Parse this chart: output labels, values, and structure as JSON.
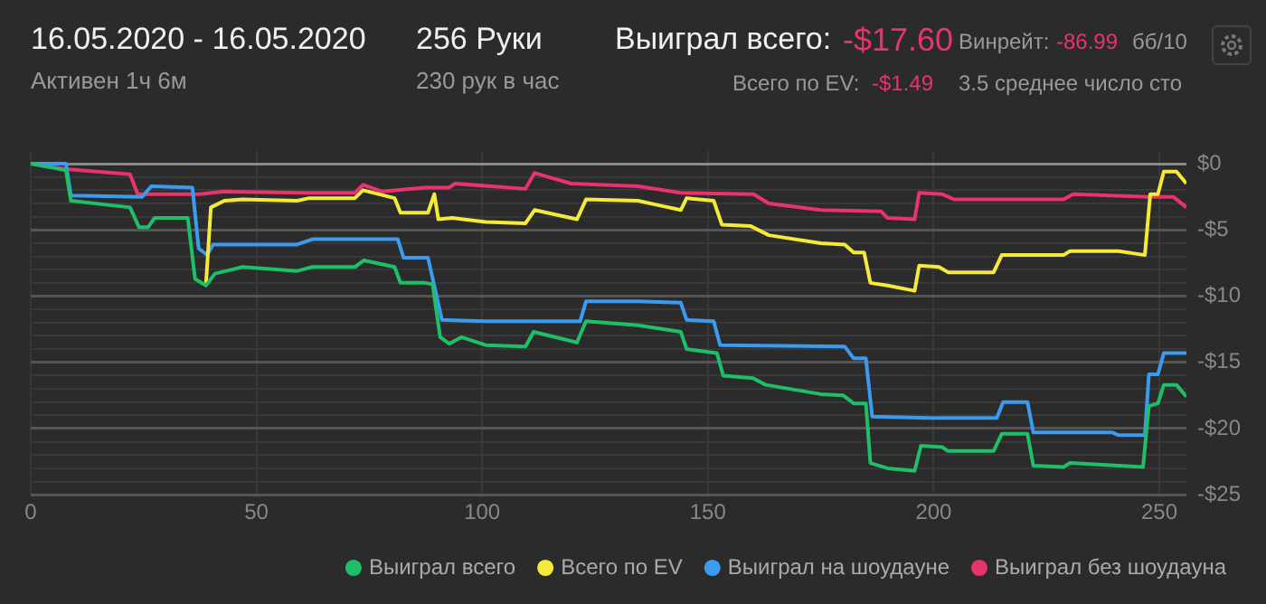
{
  "chart_data": {
    "type": "line",
    "title": "16.05.2020 - 16.05.2020",
    "subtitle": "Активен 1ч 6м",
    "annotations": [
      "256 Руки",
      "230 рук в час",
      "Выиграл всего:",
      "-$17.60",
      "Всего по EV:",
      "-$1.49",
      "Винрейт:",
      "-86.99",
      "бб/10",
      "3.5 среднее число сто"
    ],
    "xlim": [
      0,
      256
    ],
    "xticks": [
      0,
      50,
      100,
      150,
      200,
      250
    ],
    "ylim": [
      -25,
      1
    ],
    "yticks": [
      {
        "value": 0,
        "label": "$0"
      },
      {
        "value": -1,
        "label": null
      },
      {
        "value": -2,
        "label": null
      },
      {
        "value": -3,
        "label": null
      },
      {
        "value": -4,
        "label": null
      },
      {
        "value": -5,
        "label": "-$5"
      },
      {
        "value": -6,
        "label": null
      },
      {
        "value": -7,
        "label": null
      },
      {
        "value": -8,
        "label": null
      },
      {
        "value": -9,
        "label": null
      },
      {
        "value": -10,
        "label": "-$10"
      },
      {
        "value": -11,
        "label": null
      },
      {
        "value": -12,
        "label": null
      },
      {
        "value": -13,
        "label": null
      },
      {
        "value": -14,
        "label": null
      },
      {
        "value": -15,
        "label": "-$15"
      },
      {
        "value": -16,
        "label": null
      },
      {
        "value": -17,
        "label": null
      },
      {
        "value": -18,
        "label": null
      },
      {
        "value": -19,
        "label": null
      },
      {
        "value": -20,
        "label": "-$20"
      },
      {
        "value": -21,
        "label": null
      },
      {
        "value": -22,
        "label": null
      },
      {
        "value": -23,
        "label": null
      },
      {
        "value": -24,
        "label": null
      },
      {
        "value": -25,
        "label": "-$25"
      }
    ],
    "grid": true,
    "legend": "bottom",
    "marker": "none",
    "line_style": "solid",
    "series": [
      {
        "name": "Выиграл всего",
        "color": "#1fbf6a",
        "x": [
          0,
          7.8,
          8.9,
          22,
          24,
          26,
          27.4,
          34.8,
          36.4,
          38.8,
          40.8,
          46.9,
          59,
          62.4,
          71.8,
          73.8,
          80.6,
          81.9,
          87.3,
          89,
          90.7,
          92.7,
          95.4,
          100.8,
          109.6,
          111.4,
          121,
          123,
          134.5,
          144,
          145.3,
          152,
          153.4,
          160,
          162.8,
          175,
          180,
          182.3,
          185,
          186,
          189.8,
          195.8,
          197.2,
          201.9,
          203.2,
          213.3,
          215.1,
          220.8,
          222.1,
          228.8,
          230.2,
          246.4,
          247.7,
          249.7,
          251,
          253.8,
          256
        ],
        "values": [
          0,
          -0.5,
          -2.8,
          -3.3,
          -4.8,
          -4.8,
          -4.1,
          -4.1,
          -8.7,
          -9.2,
          -8.3,
          -7.8,
          -8.1,
          -7.8,
          -7.8,
          -7.3,
          -7.8,
          -9,
          -9,
          -9.1,
          -13.1,
          -13.6,
          -13.1,
          -13.7,
          -13.8,
          -12.7,
          -13.5,
          -11.9,
          -12.2,
          -12.7,
          -14,
          -14.3,
          -16,
          -16.2,
          -16.7,
          -17.4,
          -17.5,
          -18.1,
          -18.1,
          -22.6,
          -23,
          -23.2,
          -21.3,
          -21.4,
          -21.7,
          -21.7,
          -20.4,
          -20.4,
          -22.8,
          -22.9,
          -22.6,
          -22.9,
          -18.3,
          -18.1,
          -16.7,
          -16.7,
          -17.6
        ]
      },
      {
        "name": "Всего по EV",
        "color": "#f5ea3a",
        "x": [
          38.8,
          39.9,
          42.9,
          46.9,
          59,
          61.7,
          71.8,
          73.6,
          80.6,
          81.9,
          88,
          89.4,
          90.3,
          93.4,
          100.8,
          109.6,
          111.6,
          121,
          123,
          134.5,
          139.9,
          144,
          145.3,
          151.3,
          153.1,
          159.4,
          163.5,
          175,
          180.3,
          182.3,
          184.6,
          186,
          189.8,
          195.8,
          196.8,
          201.2,
          203.2,
          213.3,
          215.1,
          228.8,
          230.2,
          241,
          246.8,
          248,
          249.7,
          251,
          253.8,
          256
        ],
        "values": [
          -9.2,
          -3.3,
          -2.8,
          -2.7,
          -2.8,
          -2.6,
          -2.6,
          -2,
          -2.6,
          -3.7,
          -3.7,
          -2.3,
          -4.2,
          -4.1,
          -4.4,
          -4.5,
          -3.5,
          -4.2,
          -2.7,
          -2.8,
          -3.2,
          -3.5,
          -2.6,
          -2.8,
          -4.6,
          -4.7,
          -5.4,
          -6,
          -6.1,
          -6.7,
          -6.7,
          -9,
          -9.2,
          -9.6,
          -7.7,
          -7.8,
          -8.2,
          -8.2,
          -6.9,
          -6.9,
          -6.6,
          -6.6,
          -6.9,
          -2.3,
          -2.3,
          -0.6,
          -0.6,
          -1.5
        ]
      },
      {
        "name": "Выиграл на шоудауне",
        "color": "#3b9bf0",
        "x": [
          0,
          7.8,
          8.9,
          24.7,
          26.7,
          35.8,
          37.2,
          39.1,
          40.4,
          59,
          62.4,
          81.3,
          82.6,
          88,
          91.1,
          100.8,
          121.7,
          123,
          134.5,
          144,
          145.3,
          151.3,
          152.7,
          180.3,
          182.3,
          185,
          186.4,
          199.2,
          214,
          215.4,
          220.8,
          222.1,
          239.6,
          241,
          246.8,
          247.7,
          249.7,
          251,
          256
        ],
        "values": [
          0,
          0,
          -2.4,
          -2.5,
          -1.7,
          -1.8,
          -6.4,
          -6.9,
          -6.1,
          -6.1,
          -5.7,
          -5.7,
          -7.1,
          -7.1,
          -11.8,
          -11.9,
          -11.9,
          -10.4,
          -10.4,
          -10.5,
          -11.8,
          -11.9,
          -13.7,
          -13.8,
          -14.7,
          -14.7,
          -19.1,
          -19.2,
          -19.2,
          -18,
          -18,
          -20.3,
          -20.3,
          -20.5,
          -20.5,
          -15.9,
          -15.9,
          -14.3,
          -14.3
        ]
      },
      {
        "name": "Выиграл без шоудауна",
        "color": "#e8336b",
        "x": [
          0,
          7.8,
          22,
          23.7,
          37.4,
          42.9,
          60.4,
          71.8,
          73.6,
          77.9,
          87.3,
          92.7,
          94,
          109.6,
          111.6,
          119.7,
          134.5,
          144,
          160.1,
          163.5,
          175,
          188.4,
          189.8,
          195.8,
          196.8,
          201.9,
          204.6,
          228.8,
          230.9,
          247.7,
          253.1,
          256
        ],
        "values": [
          0,
          -0.4,
          -0.8,
          -2.3,
          -2.3,
          -2.1,
          -2.2,
          -2.2,
          -1.6,
          -2.1,
          -1.8,
          -1.8,
          -1.5,
          -1.9,
          -0.7,
          -1.5,
          -1.7,
          -2.2,
          -2.3,
          -3,
          -3.5,
          -3.6,
          -4.1,
          -4.2,
          -2.2,
          -2.3,
          -2.7,
          -2.7,
          -2.3,
          -2.5,
          -2.5,
          -3.3
        ]
      }
    ]
  }
}
